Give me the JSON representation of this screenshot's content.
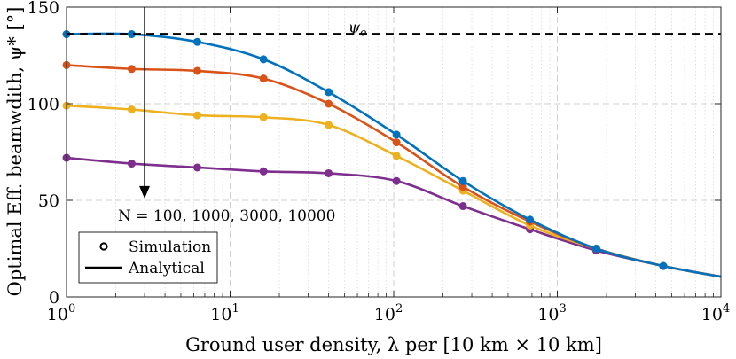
{
  "chart_data": {
    "type": "line",
    "xscale": "log",
    "xlabel": "Ground user density, λ per [10 km × 10 km]",
    "ylabel": "Optimal Eff. beamwdith, ψ* [°]",
    "xlim": [
      1,
      10000
    ],
    "ylim": [
      0,
      150
    ],
    "x_ticks": [
      {
        "value": 1,
        "base": "10",
        "exp": "0"
      },
      {
        "value": 10,
        "base": "10",
        "exp": "1"
      },
      {
        "value": 100,
        "base": "10",
        "exp": "2"
      },
      {
        "value": 1000,
        "base": "10",
        "exp": "3"
      },
      {
        "value": 10000,
        "base": "10",
        "exp": "4"
      }
    ],
    "y_ticks": [
      {
        "value": 0,
        "label": "0"
      },
      {
        "value": 50,
        "label": "50"
      },
      {
        "value": 100,
        "label": "100"
      },
      {
        "value": 150,
        "label": "150"
      }
    ],
    "grid": true,
    "reference_line": {
      "value": 136,
      "label": "ψo",
      "label_main": "ψ",
      "label_sub": "o",
      "color": "#000000",
      "style": "dashed"
    },
    "annotation": {
      "text": "N = 100, 1000, 3000, 10000",
      "arrow_x": 3,
      "arrow_from": 150,
      "arrow_to": 51
    },
    "legend": {
      "position": "bottom-left",
      "entries": [
        {
          "label": "Simulation",
          "kind": "marker"
        },
        {
          "label": "Analytical",
          "kind": "line"
        }
      ]
    },
    "x": [
      1,
      2.5,
      6.3,
      16,
      40,
      104,
      265,
      680,
      1730,
      4440,
      10000
    ],
    "series": [
      {
        "name": "N = 100",
        "color": "#0072BD",
        "values": [
          136,
          136,
          132,
          123,
          106,
          84,
          60,
          40,
          25,
          16,
          10.5
        ]
      },
      {
        "name": "N = 1000",
        "color": "#D95319",
        "values": [
          120,
          118,
          117,
          113,
          100,
          80,
          57,
          39,
          25,
          16,
          10.5
        ]
      },
      {
        "name": "N = 3000",
        "color": "#EDB120",
        "values": [
          99,
          97,
          94,
          93,
          89,
          73,
          55,
          37,
          25,
          16,
          10.5
        ]
      },
      {
        "name": "N = 10000",
        "color": "#7E2F8E",
        "values": [
          72,
          69,
          67,
          65,
          64,
          60,
          47,
          35,
          24,
          16,
          10.5
        ]
      }
    ]
  }
}
